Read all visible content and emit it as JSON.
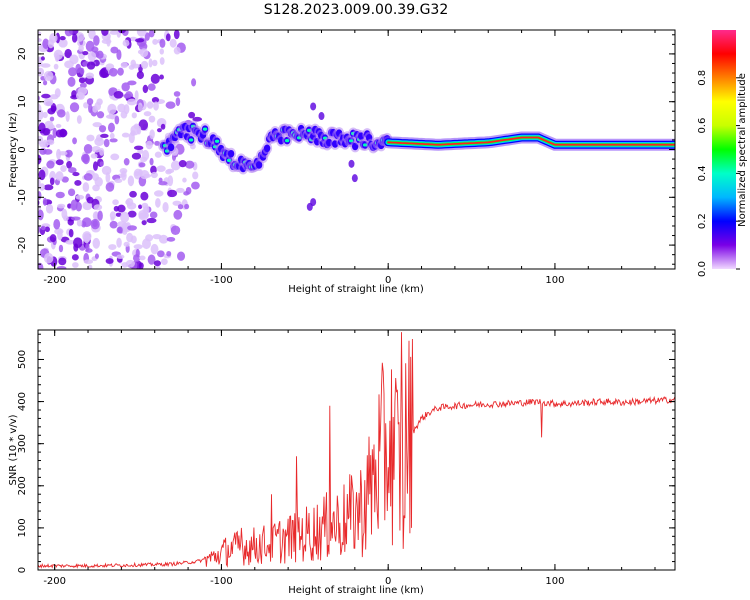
{
  "title": "S128.2023.009.00.39.G32",
  "chart_data": [
    {
      "type": "heatmap",
      "xlabel": "Height of straight line (km)",
      "ylabel": "Frequency (Hz)",
      "xlim": [
        -210,
        172
      ],
      "ylim": [
        -25,
        25
      ],
      "xticks": [
        -200,
        -100,
        0,
        100
      ],
      "yticks": [
        -20,
        -10,
        0,
        10,
        20
      ],
      "colorbar": {
        "label": "Normalized spectral amplitude",
        "range": [
          0,
          1
        ],
        "ticks": [
          "0.0",
          "0.2",
          "0.4",
          "0.6",
          "0.8"
        ],
        "colors": [
          "#f0d8ff",
          "#7a00e6",
          "#0000ff",
          "#00b7ff",
          "#00ffc8",
          "#00ff00",
          "#c8ff00",
          "#ffff00",
          "#ff8000",
          "#ff0000",
          "#ff2a8c"
        ]
      },
      "description_points": {
        "noise_region_x": [
          -210,
          -110
        ],
        "ridge": [
          {
            "x": -130,
            "f": 4
          },
          {
            "x": -110,
            "f": 3
          },
          {
            "x": -100,
            "f": 0
          },
          {
            "x": -90,
            "f": -3
          },
          {
            "x": -80,
            "f": -4
          },
          {
            "x": -70,
            "f": 2
          },
          {
            "x": -60,
            "f": 3
          },
          {
            "x": -45,
            "f": 3
          },
          {
            "x": -30,
            "f": 2
          },
          {
            "x": -15,
            "f": 2
          },
          {
            "x": 0,
            "f": 1.5
          },
          {
            "x": 30,
            "f": 1
          },
          {
            "x": 60,
            "f": 1.5
          },
          {
            "x": 80,
            "f": 2.5
          },
          {
            "x": 90,
            "f": 2.5
          },
          {
            "x": 100,
            "f": 1
          },
          {
            "x": 172,
            "f": 1
          }
        ]
      }
    },
    {
      "type": "line",
      "xlabel": "Height of straight line (km)",
      "ylabel": "SNR (10 * v/v)",
      "xlim": [
        -210,
        172
      ],
      "ylim": [
        0,
        570
      ],
      "xticks": [
        -200,
        -100,
        0,
        100
      ],
      "yticks": [
        0,
        100,
        200,
        300,
        400,
        500
      ],
      "series": [
        {
          "color": "#e8292b",
          "x": [
            -210,
            -180,
            -150,
            -130,
            -115,
            -105,
            -95,
            -85,
            -75,
            -65,
            -55,
            -45,
            -35,
            -25,
            -15,
            -10,
            -5,
            0,
            5,
            8,
            10,
            15,
            20,
            25,
            30,
            40,
            50,
            60,
            70,
            80,
            90,
            100,
            110,
            120,
            130,
            140,
            150,
            160,
            172
          ],
          "y": [
            10,
            10,
            12,
            14,
            20,
            30,
            50,
            55,
            60,
            70,
            80,
            90,
            105,
            120,
            150,
            200,
            260,
            300,
            280,
            200,
            300,
            330,
            360,
            375,
            385,
            390,
            392,
            394,
            395,
            397,
            400,
            395,
            395,
            398,
            400,
            398,
            400,
            402,
            405
          ],
          "spikes": [
            {
              "x": -88,
              "y": 100
            },
            {
              "x": -70,
              "y": 180
            },
            {
              "x": -55,
              "y": 270
            },
            {
              "x": -35,
              "y": 390
            },
            {
              "x": 8,
              "y": 565
            },
            {
              "x": 9,
              "y": 50
            },
            {
              "x": 92,
              "y": 315
            }
          ]
        }
      ]
    }
  ]
}
